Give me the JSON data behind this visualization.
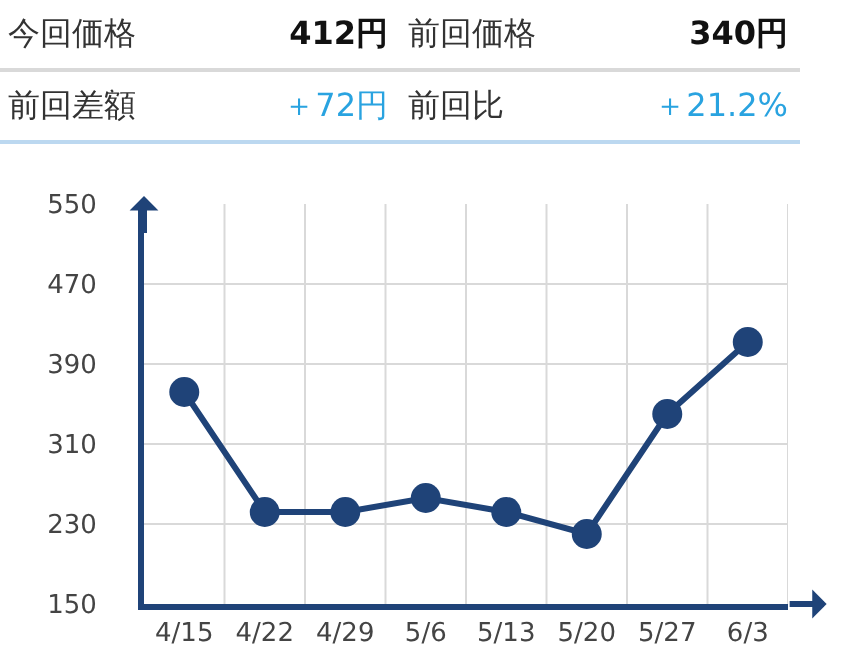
{
  "chart_data": {
    "type": "line",
    "annotations": [
      "今回価格",
      "412円",
      "前回価格",
      "340円",
      "前回差額",
      "＋72円",
      "前回比",
      "＋21.2%"
    ],
    "categories": [
      "4/15",
      "4/22",
      "4/29",
      "5/6",
      "5/13",
      "5/20",
      "5/27",
      "6/3"
    ],
    "series": [
      {
        "color": "#1f4378",
        "values": [
          362,
          242,
          242,
          256,
          242,
          220,
          340,
          412
        ]
      }
    ],
    "ylim": [
      150,
      550
    ],
    "yticks": [
      150,
      230,
      310,
      390,
      470,
      550
    ],
    "grid": true,
    "marker": "circle",
    "line_style": "solid"
  }
}
